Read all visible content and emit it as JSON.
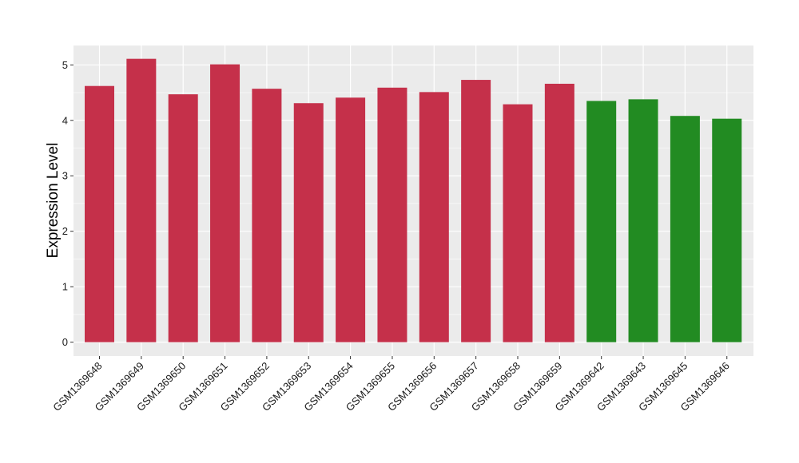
{
  "chart_data": {
    "type": "bar",
    "title": "",
    "xlabel": "",
    "ylabel": "Expression Level",
    "ylim": [
      -0.25,
      5.35
    ],
    "yticks": [
      0,
      1,
      2,
      3,
      4,
      5
    ],
    "grid": true,
    "legend": "none",
    "categories": [
      "GSM1369648",
      "GSM1369649",
      "GSM1369650",
      "GSM1369651",
      "GSM1369652",
      "GSM1369653",
      "GSM1369654",
      "GSM1369655",
      "GSM1369656",
      "GSM1369657",
      "GSM1369658",
      "GSM1369659",
      "GSM1369642",
      "GSM1369643",
      "GSM1369645",
      "GSM1369646"
    ],
    "values": [
      4.62,
      5.11,
      4.47,
      5.01,
      4.57,
      4.31,
      4.41,
      4.59,
      4.51,
      4.73,
      4.29,
      4.66,
      4.35,
      4.38,
      4.08,
      4.03
    ],
    "bar_colors": [
      "#c5304a",
      "#c5304a",
      "#c5304a",
      "#c5304a",
      "#c5304a",
      "#c5304a",
      "#c5304a",
      "#c5304a",
      "#c5304a",
      "#c5304a",
      "#c5304a",
      "#c5304a",
      "#228b22",
      "#228b22",
      "#228b22",
      "#228b22"
    ],
    "panel_background": "#ebebeb",
    "gridline_color": "#ffffff"
  }
}
